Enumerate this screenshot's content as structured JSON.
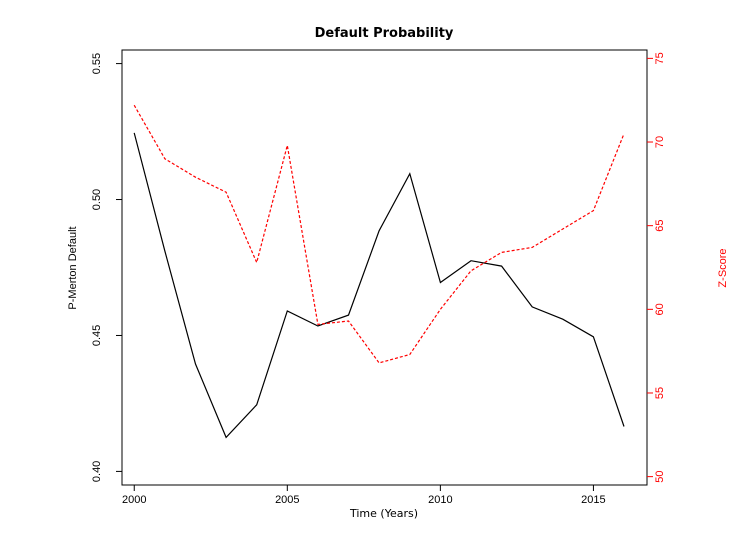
{
  "chart_data": {
    "type": "line",
    "title": "Default Probability",
    "xlabel": "Time (Years)",
    "ylabel": "P-Merton Default",
    "y2label": "Z-Score",
    "x": [
      2000,
      2001,
      2002,
      2003,
      2004,
      2005,
      2006,
      2007,
      2008,
      2009,
      2010,
      2011,
      2012,
      2013,
      2014,
      2015,
      2016
    ],
    "xlim": [
      1999.6,
      2016.75
    ],
    "ylim": [
      0.395,
      0.555
    ],
    "y2lim": [
      49.5,
      75.5
    ],
    "xticks": [
      "2000",
      "2005",
      "2010",
      "2015"
    ],
    "yticks": [
      "0.40",
      "0.45",
      "0.50",
      "0.55"
    ],
    "y2ticks": [
      "50",
      "55",
      "60",
      "65",
      "70",
      "75"
    ],
    "grid": false,
    "axis2_color": "#ff0000",
    "series": [
      {
        "axis": "left",
        "color": "#000000",
        "style": "solid",
        "values": [
          0.5245,
          0.481,
          0.4395,
          0.4125,
          0.4245,
          0.459,
          0.4535,
          0.4575,
          0.4885,
          0.5095,
          0.4695,
          0.4775,
          0.4755,
          0.4605,
          0.456,
          0.4495,
          0.4165
        ]
      },
      {
        "axis": "right",
        "color": "#ff0000",
        "style": "dashed",
        "values": [
          72.2,
          69.0,
          67.9,
          67.0,
          62.8,
          69.8,
          59.1,
          59.3,
          56.8,
          57.3,
          60.0,
          62.3,
          63.4,
          63.7,
          64.8,
          65.9,
          70.5
        ]
      }
    ]
  }
}
